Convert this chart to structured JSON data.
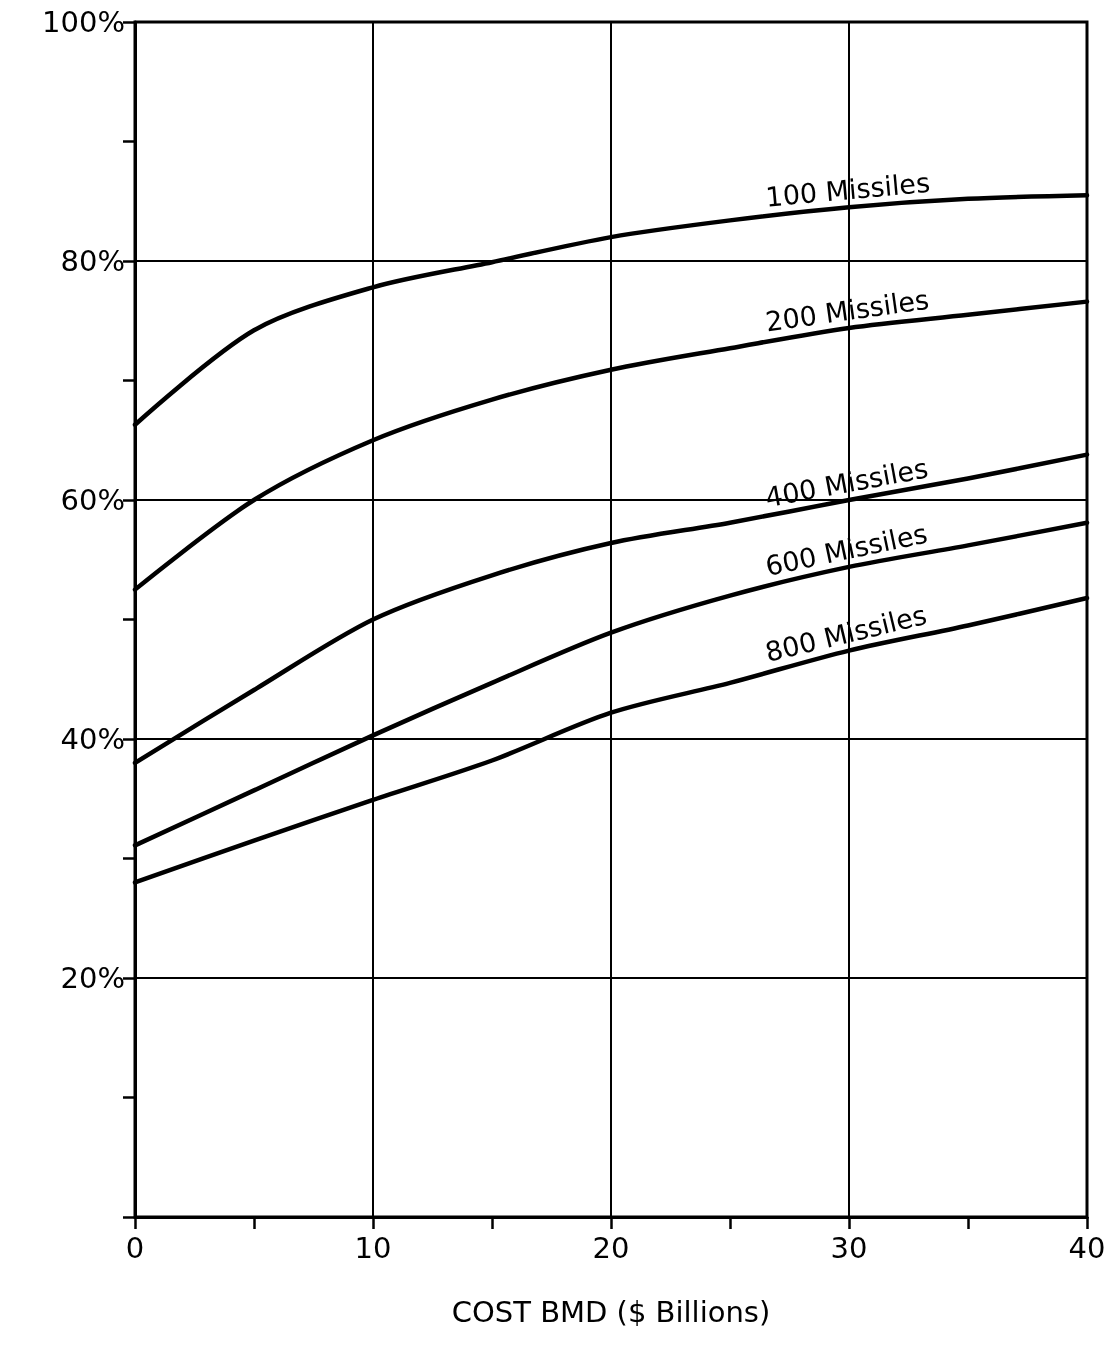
{
  "chart_data": {
    "type": "line",
    "xlabel": "COST BMD ($ Billions)",
    "x": [
      0,
      5,
      10,
      15,
      20,
      25,
      30,
      35,
      40
    ],
    "series": [
      {
        "name": "100 Missiles",
        "color": "#000000",
        "values": [
          66.3,
          74.2,
          77.8,
          79.9,
          82,
          83.4,
          84.5,
          85.2,
          85.5
        ]
      },
      {
        "name": "200 Missiles",
        "color": "#000000",
        "values": [
          52.5,
          60,
          65,
          68.4,
          70.9,
          72.7,
          74.4,
          75.5,
          76.6
        ]
      },
      {
        "name": "400 Missiles",
        "color": "#000000",
        "values": [
          38,
          44.1,
          50,
          53.7,
          56.4,
          58.1,
          60,
          61.8,
          63.8
        ]
      },
      {
        "name": "600 Missiles",
        "color": "#000000",
        "values": [
          31.1,
          35.7,
          40.3,
          44.7,
          48.9,
          52,
          54.4,
          56.2,
          58.1
        ]
      },
      {
        "name": "800 Missiles",
        "color": "#000000",
        "values": [
          28,
          31.5,
          34.9,
          38.2,
          42.2,
          44.7,
          47.4,
          49.5,
          51.8
        ]
      }
    ],
    "xlim": [
      0,
      40
    ],
    "xticks": [
      0,
      {
        "value": 5,
        "label": null
      },
      10,
      {
        "value": 15,
        "label": null
      },
      20,
      {
        "value": 25,
        "label": null
      },
      30,
      {
        "value": 35,
        "label": null
      },
      40
    ],
    "ylim": [
      0,
      100
    ],
    "yticks": [
      {
        "value": 0,
        "label": null
      },
      {
        "value": 10,
        "label": null
      },
      {
        "value": 20,
        "label": "20%"
      },
      {
        "value": 30,
        "label": null
      },
      {
        "value": 40,
        "label": "40%"
      },
      {
        "value": 50,
        "label": null
      },
      {
        "value": 60,
        "label": "60%"
      },
      {
        "value": 70,
        "label": null
      },
      {
        "value": 80,
        "label": "80%"
      },
      {
        "value": 90,
        "label": null
      },
      {
        "value": 100,
        "label": "100%"
      }
    ],
    "grid": true,
    "marker": "none",
    "line_style": "solid",
    "legend": false
  }
}
